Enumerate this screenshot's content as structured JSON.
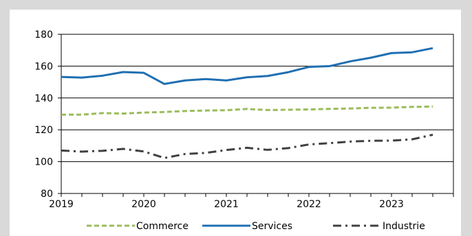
{
  "chart_data": {
    "type": "line",
    "x": [
      2019.0,
      2019.25,
      2019.5,
      2019.75,
      2020.0,
      2020.25,
      2020.5,
      2020.75,
      2021.0,
      2021.25,
      2021.5,
      2021.75,
      2022.0,
      2022.25,
      2022.5,
      2022.75,
      2023.0,
      2023.25,
      2023.5
    ],
    "x_ticks": [
      "2019",
      "2020",
      "2021",
      "2022",
      "2023"
    ],
    "x_tick_values": [
      2019,
      2020,
      2021,
      2022,
      2023
    ],
    "xlim": [
      2019,
      2023.75
    ],
    "ylim": [
      80,
      180
    ],
    "y_ticks": [
      "80",
      "100",
      "120",
      "140",
      "160",
      "180"
    ],
    "y_tick_values": [
      80,
      100,
      120,
      140,
      160,
      180
    ],
    "grid": "horizontal",
    "legend_position": "bottom",
    "series": [
      {
        "name": "Commerce",
        "color": "#9bbb59",
        "style": "dashed",
        "values": [
          129.5,
          129.5,
          130.5,
          130.2,
          130.8,
          131.2,
          131.8,
          132.1,
          132.3,
          133.1,
          132.4,
          132.6,
          132.8,
          133.1,
          133.4,
          133.8,
          133.9,
          134.4,
          134.6
        ]
      },
      {
        "name": "Services",
        "color": "#1f6fb2",
        "style": "solid",
        "values": [
          153.2,
          152.8,
          154.0,
          156.3,
          155.8,
          148.8,
          151.0,
          151.9,
          151.0,
          153.0,
          153.8,
          156.2,
          159.5,
          160.0,
          163.0,
          165.3,
          168.2,
          168.7,
          171.3
        ]
      },
      {
        "name": "Industrie",
        "color": "#404040",
        "style": "dashdot",
        "values": [
          107.0,
          106.3,
          106.8,
          108.0,
          106.4,
          102.3,
          104.8,
          105.5,
          107.3,
          108.7,
          107.4,
          108.5,
          110.8,
          111.6,
          112.6,
          113.1,
          113.2,
          114.0,
          116.9
        ]
      }
    ]
  }
}
